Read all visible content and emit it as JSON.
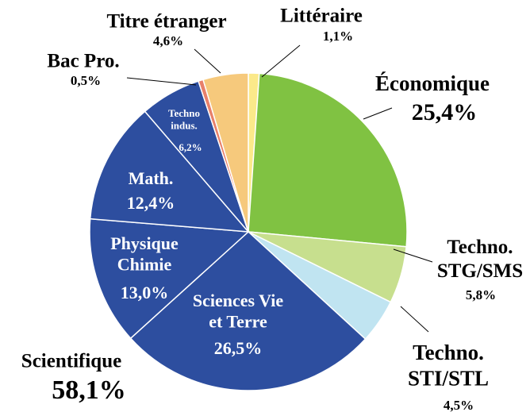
{
  "chart_data": {
    "type": "pie",
    "categories": [
      "Littéraire",
      "Économique",
      "Techno.\nSTG/SMS",
      "Techno.\nSTI/STL",
      "Sciences Vie\net Terre",
      "Physique\nChimie",
      "Math.",
      "Techno\nindus.",
      "Bac Pro.",
      "Titre étranger"
    ],
    "values": [
      1.1,
      25.4,
      5.8,
      4.5,
      26.5,
      13.0,
      12.4,
      6.2,
      0.5,
      4.6
    ],
    "value_labels": [
      "1,1%",
      "25,4%",
      "5,8%",
      "4,5%",
      "26,5%",
      "13,0%",
      "12,4%",
      "6,2%",
      "0,5%",
      "4,6%"
    ],
    "colors": [
      "#fbe98a",
      "#80c242",
      "#c7df8e",
      "#c0e4f1",
      "#2d4e9f",
      "#2d4e9f",
      "#2d4e9f",
      "#2d4e9f",
      "#e8806a",
      "#f6c97c"
    ],
    "annotations": [
      {
        "label": "Scientifique",
        "value": 58.1,
        "value_label": "58,1%"
      }
    ]
  }
}
